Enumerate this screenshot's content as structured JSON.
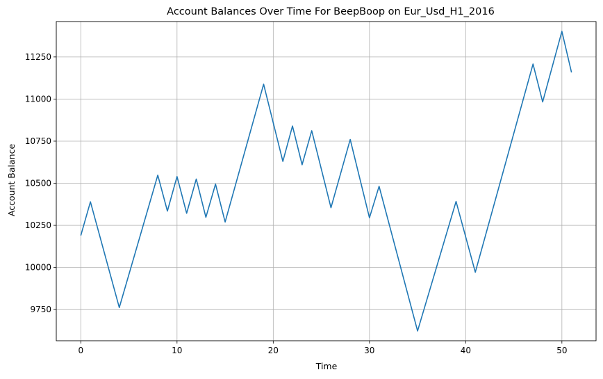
{
  "chart_data": {
    "type": "line",
    "title": "Account Balances Over Time For BeepBoop on Eur_Usd_H1_2016",
    "xlabel": "Time",
    "ylabel": "Account Balance",
    "xlim": [
      -2.55,
      53.55
    ],
    "ylim": [
      9565,
      11460
    ],
    "xticks": [
      0,
      10,
      20,
      30,
      40,
      50
    ],
    "yticks": [
      9750,
      10000,
      10250,
      10500,
      10750,
      11000,
      11250
    ],
    "grid": true,
    "color": "#1f77b4",
    "series": [
      {
        "x": [
          0,
          1,
          4,
          8,
          9,
          10,
          11,
          12,
          13,
          14,
          15,
          19,
          21,
          22,
          23,
          24,
          26,
          28,
          30,
          31,
          35,
          39,
          41,
          47,
          48,
          50,
          51
        ],
        "values": [
          10190,
          10390,
          9762,
          10548,
          10335,
          10540,
          10322,
          10525,
          10298,
          10495,
          10270,
          11088,
          10630,
          10840,
          10610,
          10812,
          10355,
          10760,
          10295,
          10482,
          9623,
          10392,
          9972,
          11208,
          10983,
          11402,
          11158
        ]
      }
    ]
  }
}
